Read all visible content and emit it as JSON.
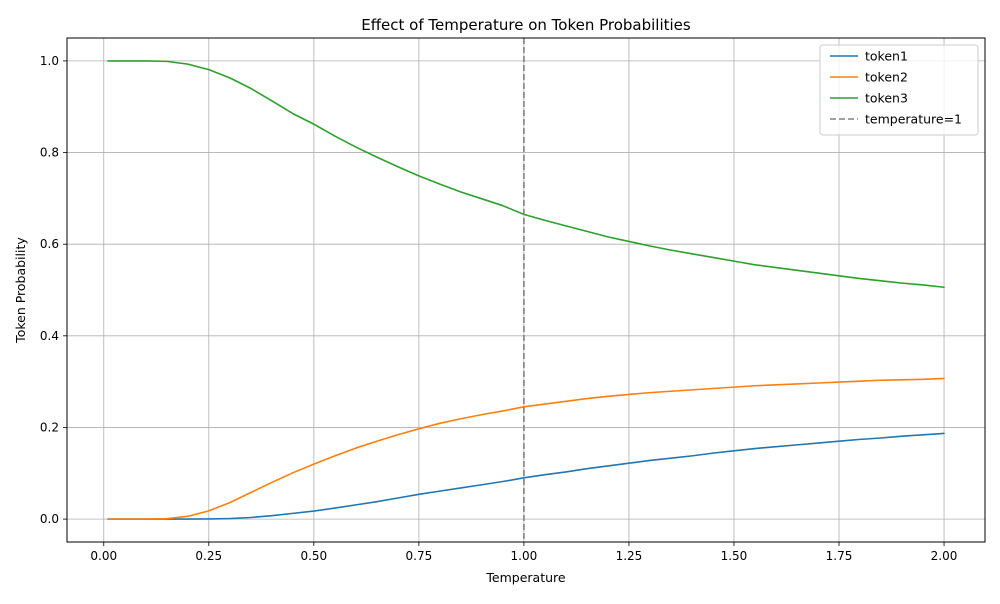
{
  "chart_data": {
    "type": "line",
    "title": "Effect of Temperature on Token Probabilities",
    "xlabel": "Temperature",
    "ylabel": "Token Probability",
    "xlim": [
      -0.0875,
      2.0975
    ],
    "ylim": [
      -0.05,
      1.05
    ],
    "grid": true,
    "legend_position": "top-right",
    "xticks": [
      {
        "value": 0.0,
        "label": "0.00"
      },
      {
        "value": 0.25,
        "label": "0.25"
      },
      {
        "value": 0.5,
        "label": "0.50"
      },
      {
        "value": 0.75,
        "label": "0.75"
      },
      {
        "value": 1.0,
        "label": "1.00"
      },
      {
        "value": 1.25,
        "label": "1.25"
      },
      {
        "value": 1.5,
        "label": "1.50"
      },
      {
        "value": 1.75,
        "label": "1.75"
      },
      {
        "value": 2.0,
        "label": "2.00"
      }
    ],
    "yticks": [
      {
        "value": 0.0,
        "label": "0.0"
      },
      {
        "value": 0.2,
        "label": "0.2"
      },
      {
        "value": 0.4,
        "label": "0.4"
      },
      {
        "value": 0.6,
        "label": "0.6"
      },
      {
        "value": 0.8,
        "label": "0.8"
      },
      {
        "value": 1.0,
        "label": "1.0"
      }
    ],
    "x": [
      0.01,
      0.1,
      0.15,
      0.2,
      0.25,
      0.3,
      0.35,
      0.4,
      0.45,
      0.5,
      0.55,
      0.6,
      0.65,
      0.7,
      0.75,
      0.8,
      0.85,
      0.9,
      0.95,
      1.0,
      1.05,
      1.1,
      1.15,
      1.2,
      1.25,
      1.3,
      1.35,
      1.4,
      1.45,
      1.5,
      1.55,
      1.6,
      1.65,
      1.7,
      1.75,
      1.8,
      1.85,
      1.9,
      1.95,
      2.0
    ],
    "series": [
      {
        "name": "token1",
        "color": "#1f77b4",
        "values": [
          0.0,
          0.0,
          0.0,
          0.0,
          0.0003,
          0.0012,
          0.0035,
          0.0075,
          0.0125,
          0.0175,
          0.024,
          0.031,
          0.038,
          0.046,
          0.054,
          0.061,
          0.068,
          0.075,
          0.082,
          0.09,
          0.097,
          0.103,
          0.11,
          0.116,
          0.122,
          0.128,
          0.133,
          0.138,
          0.144,
          0.149,
          0.154,
          0.158,
          0.162,
          0.166,
          0.17,
          0.174,
          0.177,
          0.181,
          0.184,
          0.187
        ]
      },
      {
        "name": "token2",
        "color": "#ff7f0e",
        "values": [
          0.0,
          0.0,
          0.001,
          0.006,
          0.018,
          0.036,
          0.058,
          0.08,
          0.101,
          0.12,
          0.138,
          0.155,
          0.17,
          0.184,
          0.197,
          0.209,
          0.219,
          0.228,
          0.236,
          0.245,
          0.251,
          0.257,
          0.263,
          0.268,
          0.272,
          0.276,
          0.279,
          0.282,
          0.285,
          0.288,
          0.291,
          0.293,
          0.295,
          0.297,
          0.299,
          0.301,
          0.303,
          0.304,
          0.305,
          0.307
        ]
      },
      {
        "name": "token3",
        "color": "#2ca02c",
        "values": [
          1.0,
          1.0,
          0.999,
          0.993,
          0.981,
          0.963,
          0.94,
          0.913,
          0.885,
          0.862,
          0.836,
          0.812,
          0.79,
          0.769,
          0.749,
          0.731,
          0.714,
          0.699,
          0.684,
          0.665,
          0.652,
          0.64,
          0.628,
          0.616,
          0.606,
          0.596,
          0.587,
          0.579,
          0.571,
          0.563,
          0.555,
          0.549,
          0.543,
          0.537,
          0.531,
          0.525,
          0.52,
          0.515,
          0.511,
          0.506
        ]
      }
    ],
    "reference_lines": [
      {
        "name": "temperature=1",
        "orientation": "vertical",
        "x": 1.0,
        "color": "#808080",
        "style": "dashed"
      }
    ]
  }
}
